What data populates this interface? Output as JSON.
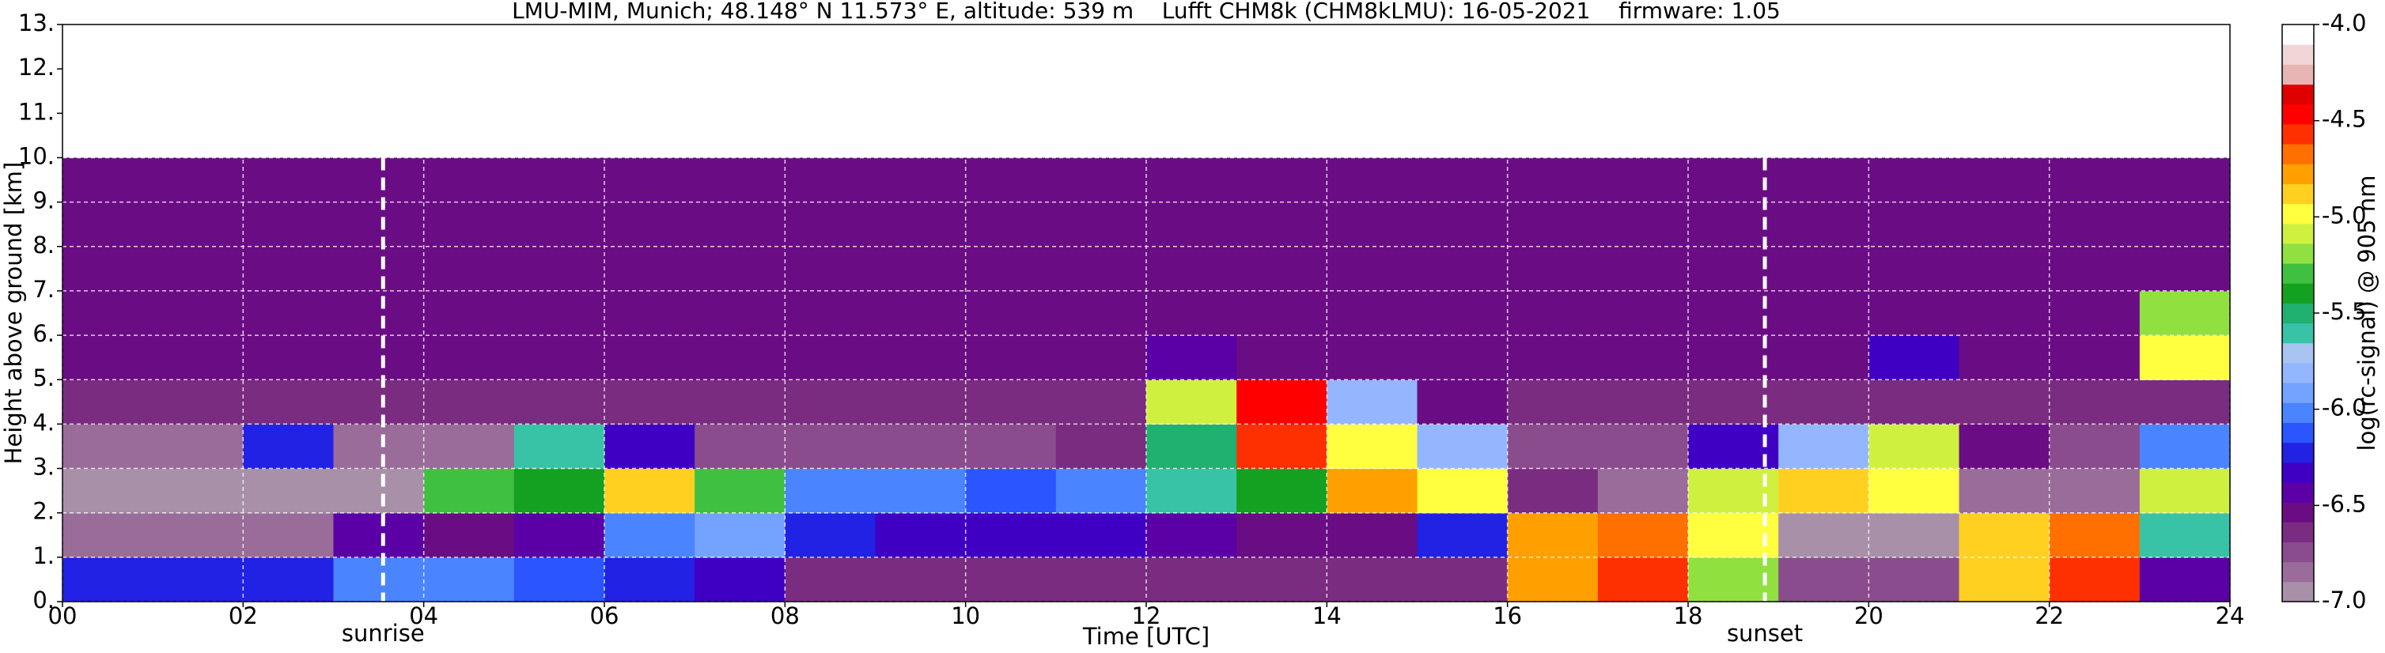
{
  "chart_data": {
    "type": "heatmap",
    "title": "LMU-MIM, Munich; 48.148° N 11.573° E, altitude: 539 m    Lufft CHM8k (CHM8kLMU): 16-05-2021    firmware: 1.05",
    "x_label": "Time [UTC]",
    "y_label": "Height above ground [km]",
    "colorbar_label": "log(rc-signal) @ 905 nm",
    "xlim": [
      0,
      24
    ],
    "ylim": [
      0,
      13
    ],
    "xticks": [
      {
        "value": 0,
        "label": "00"
      },
      {
        "value": 2,
        "label": "02"
      },
      {
        "value": 4,
        "label": "04"
      },
      {
        "value": 6,
        "label": "06"
      },
      {
        "value": 8,
        "label": "08"
      },
      {
        "value": 10,
        "label": "10"
      },
      {
        "value": 12,
        "label": "12"
      },
      {
        "value": 14,
        "label": "14"
      },
      {
        "value": 16,
        "label": "16"
      },
      {
        "value": 18,
        "label": "18"
      },
      {
        "value": 20,
        "label": "20"
      },
      {
        "value": 22,
        "label": "22"
      },
      {
        "value": 24,
        "label": "24"
      }
    ],
    "yticks": [
      {
        "value": 0,
        "label": "0."
      },
      {
        "value": 1,
        "label": "1."
      },
      {
        "value": 2,
        "label": "2."
      },
      {
        "value": 3,
        "label": "3."
      },
      {
        "value": 4,
        "label": "4."
      },
      {
        "value": 5,
        "label": "5."
      },
      {
        "value": 6,
        "label": "6."
      },
      {
        "value": 7,
        "label": "7."
      },
      {
        "value": 8,
        "label": "8."
      },
      {
        "value": 9,
        "label": "9."
      },
      {
        "value": 10,
        "label": "10."
      },
      {
        "value": 11,
        "label": "11."
      },
      {
        "value": 12,
        "label": "12."
      },
      {
        "value": 13,
        "label": "13."
      }
    ],
    "grid": true,
    "clim": [
      -7,
      -4
    ],
    "cticks": [
      {
        "value": -4,
        "label": "-4.0"
      },
      -4.5,
      {
        "value": -5,
        "label": "-5.0"
      },
      -5.5,
      {
        "value": -6,
        "label": "-6.0"
      },
      -6.5,
      {
        "value": -7,
        "label": "-7.0"
      }
    ],
    "colormap": [
      "#a890a8",
      "#9a6c9a",
      "#8a4c8c",
      "#7a2c80",
      "#6a0c84",
      "#5a00a6",
      "#4000c4",
      "#2222e4",
      "#2a55ff",
      "#4a84ff",
      "#74a2ff",
      "#94b6ff",
      "#a8c4f0",
      "#38c2a6",
      "#20b070",
      "#14a020",
      "#40c040",
      "#90e040",
      "#d0f040",
      "#ffff40",
      "#ffd020",
      "#ffa000",
      "#ff7000",
      "#ff3000",
      "#ff0000",
      "#e00000",
      "#e8b4b4",
      "#f0d6d6",
      "#ffffff"
    ],
    "xbins": [
      0,
      1,
      2,
      3,
      4,
      5,
      6,
      7,
      8,
      9,
      10,
      11,
      12,
      13,
      14,
      15,
      16,
      17,
      18,
      19,
      20,
      21,
      22,
      23,
      24
    ],
    "ybins": [
      0,
      1,
      2,
      3,
      4,
      5,
      6,
      7,
      8,
      9,
      10
    ],
    "z": [
      [
        -6.2,
        -6.2,
        -6.2,
        -6.0,
        -6.0,
        -6.1,
        -6.2,
        -6.3,
        -6.6,
        -6.6,
        -6.6,
        -6.6,
        -6.6,
        -6.6,
        -6.6,
        -6.6,
        -4.8,
        -4.6,
        -5.2,
        -6.7,
        -6.7,
        -4.9,
        -4.6,
        -6.4
      ],
      [
        -6.8,
        -6.8,
        -6.8,
        -6.4,
        -6.5,
        -6.4,
        -6.0,
        -5.9,
        -6.2,
        -6.3,
        -6.3,
        -6.3,
        -6.4,
        -6.5,
        -6.5,
        -6.2,
        -4.8,
        -4.7,
        -5.0,
        -6.9,
        -6.9,
        -4.9,
        -4.7,
        -5.6
      ],
      [
        -6.9,
        -6.9,
        -6.9,
        -6.9,
        -5.3,
        -5.4,
        -4.9,
        -5.3,
        -6.0,
        -6.0,
        -6.1,
        -6.0,
        -5.6,
        -5.4,
        -4.8,
        -5.0,
        -6.6,
        -6.8,
        -5.1,
        -4.9,
        -5.0,
        -6.8,
        -6.8,
        -5.1
      ],
      [
        -6.8,
        -6.8,
        -6.2,
        -6.8,
        -6.8,
        -5.6,
        -6.3,
        -6.7,
        -6.7,
        -6.7,
        -6.7,
        -6.6,
        -5.5,
        -4.6,
        -5.0,
        -5.8,
        -6.7,
        -6.7,
        -6.3,
        -5.8,
        -5.1,
        -6.5,
        -6.7,
        -6.0
      ],
      [
        -6.6,
        -6.6,
        -6.6,
        -6.6,
        -6.6,
        -6.6,
        -6.6,
        -6.6,
        -6.6,
        -6.6,
        -6.6,
        -6.6,
        -5.1,
        -4.5,
        -5.8,
        -6.5,
        -6.6,
        -6.6,
        -6.6,
        -6.6,
        -6.6,
        -6.6,
        -6.6,
        -6.6
      ],
      [
        -6.5,
        -6.5,
        -6.5,
        -6.5,
        -6.5,
        -6.5,
        -6.5,
        -6.5,
        -6.5,
        -6.5,
        -6.5,
        -6.5,
        -6.4,
        -6.5,
        -6.5,
        -6.5,
        -6.5,
        -6.5,
        -6.5,
        -6.5,
        -6.3,
        -6.5,
        -6.5,
        -5.0
      ],
      [
        -6.5,
        -6.5,
        -6.5,
        -6.5,
        -6.5,
        -6.5,
        -6.5,
        -6.5,
        -6.5,
        -6.5,
        -6.5,
        -6.5,
        -6.5,
        -6.5,
        -6.5,
        -6.5,
        -6.5,
        -6.5,
        -6.5,
        -6.5,
        -6.5,
        -6.5,
        -6.5,
        -5.2
      ],
      [
        -6.5,
        -6.5,
        -6.5,
        -6.5,
        -6.5,
        -6.5,
        -6.5,
        -6.5,
        -6.5,
        -6.5,
        -6.5,
        -6.5,
        -6.5,
        -6.5,
        -6.5,
        -6.5,
        -6.5,
        -6.5,
        -6.5,
        -6.5,
        -6.5,
        -6.5,
        -6.5,
        -6.5
      ],
      [
        -6.5,
        -6.5,
        -6.5,
        -6.5,
        -6.5,
        -6.5,
        -6.5,
        -6.5,
        -6.5,
        -6.5,
        -6.5,
        -6.5,
        -6.5,
        -6.5,
        -6.5,
        -6.5,
        -6.5,
        -6.5,
        -6.5,
        -6.5,
        -6.5,
        -6.5,
        -6.5,
        -6.5
      ],
      [
        -6.5,
        -6.5,
        -6.5,
        -6.5,
        -6.5,
        -6.5,
        -6.5,
        -6.5,
        -6.5,
        -6.5,
        -6.5,
        -6.5,
        -6.5,
        -6.5,
        -6.5,
        -6.5,
        -6.5,
        -6.5,
        -6.5,
        -6.5,
        -6.5,
        -6.5,
        -6.5,
        -6.5
      ]
    ],
    "annotations": [
      {
        "text": "sunrise",
        "x": 3.55
      },
      {
        "text": "sunset",
        "x": 18.85
      }
    ]
  }
}
